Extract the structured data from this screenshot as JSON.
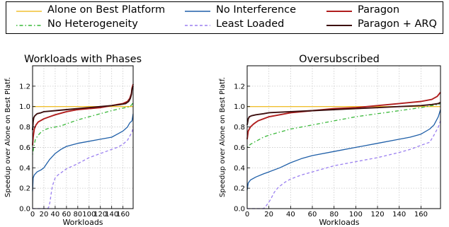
{
  "legend": [
    {
      "name": "Alone on Best Platform",
      "color": "#f0c030",
      "dash": ""
    },
    {
      "name": "No Heterogeneity",
      "color": "#39b839",
      "dash": "1.5,3,5,3"
    },
    {
      "name": "No Interference",
      "color": "#1f5fa8",
      "dash": ""
    },
    {
      "name": "Least Loaded",
      "color": "#9a7ff0",
      "dash": "4,3"
    },
    {
      "name": "Paragon",
      "color": "#b01d1d",
      "dash": ""
    },
    {
      "name": "Paragon + ARQ",
      "color": "#3d0f0f",
      "dash": ""
    }
  ],
  "chart_data": [
    {
      "type": "line",
      "title": "Workloads with Phases",
      "xlabel": "Workloads",
      "ylabel": "Speedup over Alone on Best Platf.",
      "xlim": [
        0,
        178
      ],
      "ylim": [
        0.0,
        1.4
      ],
      "xticks": [
        "0",
        "20",
        "40",
        "60",
        "80",
        "100",
        "120",
        "140",
        "160"
      ],
      "yticks": [
        "0.0",
        "0.2",
        "0.4",
        "0.6",
        "0.8",
        "1.0",
        "1.2"
      ],
      "grid": true,
      "series": [
        {
          "name": "Alone on Best Platform",
          "x": [
            0,
            178
          ],
          "y": [
            1.0,
            1.0
          ]
        },
        {
          "name": "No Heterogeneity",
          "x": [
            0,
            2,
            5,
            10,
            15,
            20,
            30,
            40,
            50,
            60,
            80,
            100,
            120,
            140,
            155,
            165,
            172,
            176,
            178
          ],
          "y": [
            0.53,
            0.6,
            0.68,
            0.72,
            0.75,
            0.77,
            0.79,
            0.8,
            0.81,
            0.83,
            0.87,
            0.9,
            0.93,
            0.96,
            0.98,
            0.99,
            1.0,
            1.02,
            1.05
          ]
        },
        {
          "name": "No Interference",
          "x": [
            0,
            1,
            3,
            8,
            15,
            20,
            25,
            30,
            40,
            50,
            60,
            80,
            100,
            120,
            140,
            150,
            160,
            168,
            172,
            176,
            178
          ],
          "y": [
            0.17,
            0.3,
            0.33,
            0.36,
            0.38,
            0.4,
            0.44,
            0.48,
            0.54,
            0.58,
            0.61,
            0.64,
            0.66,
            0.68,
            0.7,
            0.73,
            0.76,
            0.8,
            0.84,
            0.86,
            0.93
          ]
        },
        {
          "name": "Least Loaded",
          "x": [
            0,
            20,
            27,
            29,
            31,
            33,
            35,
            38,
            40,
            45,
            55,
            60,
            80,
            100,
            120,
            140,
            150,
            160,
            168,
            173,
            176,
            178
          ],
          "y": [
            0.0,
            0.0,
            0.0,
            0.02,
            0.07,
            0.15,
            0.22,
            0.27,
            0.3,
            0.33,
            0.37,
            0.39,
            0.44,
            0.5,
            0.54,
            0.58,
            0.6,
            0.63,
            0.67,
            0.72,
            0.75,
            0.8
          ]
        },
        {
          "name": "Paragon",
          "x": [
            0,
            1,
            3,
            6,
            10,
            20,
            30,
            40,
            60,
            80,
            100,
            120,
            140,
            150,
            160,
            168,
            172,
            175,
            176,
            178
          ],
          "y": [
            0.62,
            0.7,
            0.78,
            0.82,
            0.85,
            0.88,
            0.9,
            0.92,
            0.95,
            0.97,
            0.98,
            0.99,
            1.01,
            1.02,
            1.03,
            1.05,
            1.08,
            1.13,
            1.18,
            1.22
          ]
        },
        {
          "name": "Paragon + ARQ",
          "x": [
            0,
            1,
            2,
            4,
            8,
            15,
            20,
            40,
            60,
            80,
            100,
            120,
            140,
            155,
            165,
            170,
            173,
            175,
            176,
            178
          ],
          "y": [
            0.77,
            0.85,
            0.89,
            0.91,
            0.93,
            0.94,
            0.95,
            0.96,
            0.97,
            0.98,
            0.99,
            1.0,
            1.01,
            1.02,
            1.03,
            1.05,
            1.08,
            1.12,
            1.17,
            1.2
          ]
        }
      ]
    },
    {
      "type": "line",
      "title": "Oversubscribed",
      "xlabel": "Workloads",
      "ylabel": "Speedup over Alone on Best Platf.",
      "xlim": [
        0,
        178
      ],
      "ylim": [
        0.0,
        1.4
      ],
      "xticks": [
        "0",
        "20",
        "40",
        "60",
        "80",
        "100",
        "120",
        "140",
        "160"
      ],
      "yticks": [
        "0.0",
        "0.2",
        "0.4",
        "0.6",
        "0.8",
        "1.0",
        "1.2"
      ],
      "grid": true,
      "series": [
        {
          "name": "Alone on Best Platform",
          "x": [
            0,
            178
          ],
          "y": [
            1.0,
            1.0
          ]
        },
        {
          "name": "No Heterogeneity",
          "x": [
            0,
            3,
            8,
            15,
            20,
            30,
            40,
            60,
            80,
            100,
            120,
            140,
            160,
            170,
            176,
            178
          ],
          "y": [
            0.6,
            0.63,
            0.66,
            0.7,
            0.72,
            0.75,
            0.78,
            0.82,
            0.86,
            0.9,
            0.93,
            0.96,
            0.99,
            1.01,
            1.02,
            1.03
          ]
        },
        {
          "name": "No Interference",
          "x": [
            0,
            1,
            3,
            8,
            15,
            20,
            30,
            40,
            50,
            60,
            80,
            100,
            120,
            140,
            150,
            160,
            168,
            172,
            176,
            178
          ],
          "y": [
            0.18,
            0.25,
            0.28,
            0.31,
            0.34,
            0.36,
            0.4,
            0.45,
            0.49,
            0.52,
            0.56,
            0.6,
            0.64,
            0.68,
            0.7,
            0.73,
            0.78,
            0.82,
            0.9,
            0.97
          ]
        },
        {
          "name": "Least Loaded",
          "x": [
            0,
            15,
            17,
            19,
            21,
            23,
            25,
            28,
            30,
            35,
            40,
            50,
            60,
            80,
            100,
            120,
            140,
            150,
            160,
            165,
            168,
            172,
            176,
            178
          ],
          "y": [
            0.0,
            0.0,
            0.02,
            0.05,
            0.08,
            0.12,
            0.16,
            0.2,
            0.22,
            0.26,
            0.29,
            0.33,
            0.36,
            0.42,
            0.46,
            0.5,
            0.55,
            0.58,
            0.62,
            0.64,
            0.65,
            0.72,
            0.8,
            0.86
          ]
        },
        {
          "name": "Paragon",
          "x": [
            0,
            1,
            3,
            6,
            10,
            20,
            30,
            40,
            60,
            80,
            100,
            120,
            140,
            150,
            160,
            170,
            175,
            178
          ],
          "y": [
            0.68,
            0.76,
            0.8,
            0.83,
            0.86,
            0.9,
            0.92,
            0.94,
            0.96,
            0.98,
            0.99,
            1.01,
            1.03,
            1.04,
            1.05,
            1.07,
            1.1,
            1.14
          ]
        },
        {
          "name": "Paragon + ARQ",
          "x": [
            0,
            1,
            2,
            4,
            8,
            15,
            20,
            40,
            60,
            80,
            100,
            120,
            140,
            160,
            170,
            176,
            178
          ],
          "y": [
            0.82,
            0.88,
            0.9,
            0.91,
            0.92,
            0.93,
            0.94,
            0.95,
            0.96,
            0.97,
            0.98,
            0.99,
            1.0,
            1.01,
            1.02,
            1.03,
            1.04
          ]
        }
      ]
    }
  ]
}
